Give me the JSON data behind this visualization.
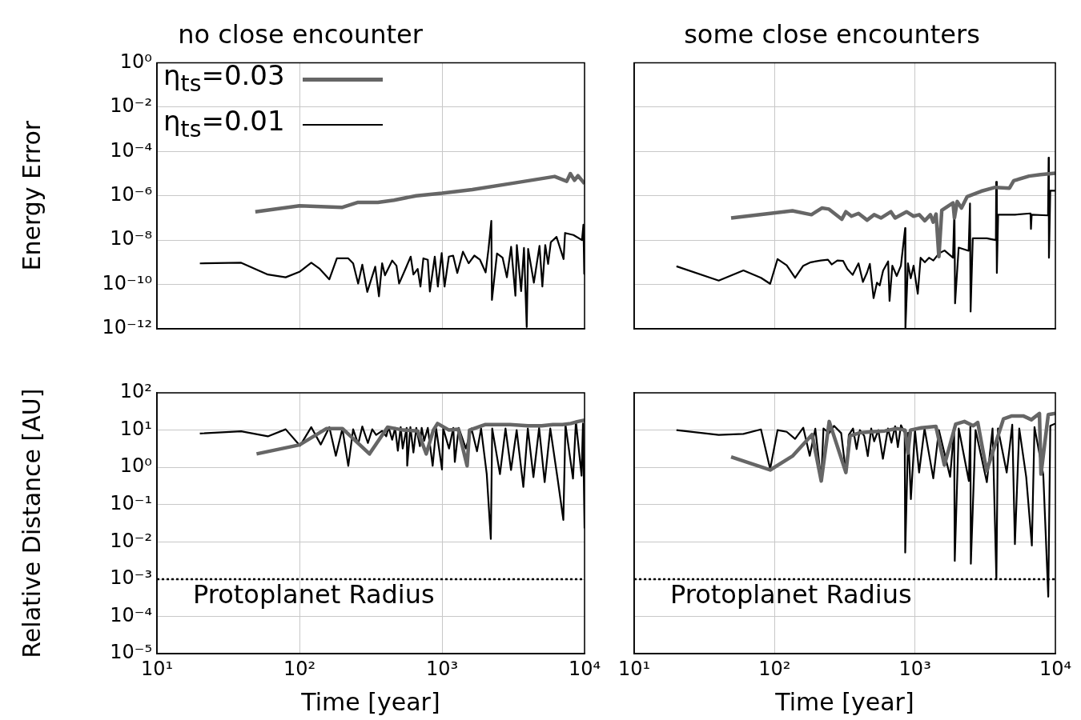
{
  "chart_data": [
    {
      "type": "line",
      "title": "no close encounter",
      "ylabel": "Energy Error",
      "log": "xy",
      "grid": true,
      "legend": "top left",
      "tick_labels": "y",
      "xlim": [
        10,
        10000
      ],
      "xticks": [
        {
          "value": 10,
          "label": null
        },
        {
          "value": 100,
          "label": null
        },
        {
          "value": 1000,
          "label": null
        },
        {
          "value": 10000,
          "label": null
        }
      ],
      "ylim": [
        1e-12,
        1
      ],
      "yticks": [
        {
          "value": 1e-12,
          "label": "10⁻¹²"
        },
        {
          "value": 1e-10,
          "label": "10⁻¹⁰"
        },
        {
          "value": 1e-08,
          "label": "10⁻⁸"
        },
        {
          "value": 1e-06,
          "label": "10⁻⁶"
        },
        {
          "value": 0.0001,
          "label": "10⁻⁴"
        },
        {
          "value": 0.01,
          "label": "10⁻²"
        },
        {
          "value": 1,
          "label": "10⁰"
        }
      ],
      "series": [
        {
          "name": "η$_{ts}$=0.03",
          "color": "#666666",
          "x": [
            49,
            100,
            200,
            255,
            355,
            460,
            660,
            1000,
            1630,
            3240,
            6170,
            7500,
            7950,
            8500,
            9000,
            10000
          ],
          "values": [
            1.9e-07,
            3.5e-07,
            3e-07,
            5e-07,
            5e-07,
            6.3e-07,
            1e-06,
            1.3e-06,
            1.9e-06,
            3.8e-06,
            7.4e-06,
            4.5e-06,
            1e-05,
            5e-06,
            8e-06,
            3.5e-06
          ]
        },
        {
          "name": "η$_{ts}$=0.01",
          "color": "#000000",
          "x": [
            20,
            39,
            60,
            80,
            100,
            121,
            139,
            162,
            183,
            220,
            238,
            258,
            276,
            299,
            340,
            361,
            380,
            398,
            447,
            479,
            500,
            550,
            603,
            630,
            675,
            706,
            740,
            795,
            822,
            890,
            935,
            995,
            1042,
            1117,
            1197,
            1280,
            1403,
            1538,
            1686,
            1847,
            2024,
            2120,
            2218,
            2240,
            2432,
            2662,
            2852,
            3055,
            3273,
            3350,
            3590,
            3760,
            3930,
            4020,
            4410,
            4830,
            5060,
            5300,
            5550,
            5800,
            6360,
            7130,
            7300,
            8360,
            9600,
            9820,
            9950,
            10000
          ],
          "values": [
            8.9e-10,
            9.5e-10,
            2.8e-10,
            2.1e-10,
            3.7e-10,
            9.5e-10,
            5e-10,
            1.7e-10,
            1.5e-09,
            1.5e-09,
            8.9e-10,
            1.1e-10,
            7.8e-10,
            4.6e-11,
            6.3e-10,
            2.9e-11,
            9e-10,
            2.6e-10,
            1.2e-09,
            7e-10,
            1.1e-10,
            4.5e-10,
            1.8e-09,
            2.8e-10,
            5e-10,
            8e-11,
            1.5e-09,
            1.3e-09,
            4.8e-11,
            1.8e-09,
            8e-11,
            2.6e-09,
            8e-11,
            1.8e-09,
            2e-09,
            3.3e-10,
            3e-09,
            9e-10,
            2e-09,
            1.3e-09,
            3.5e-10,
            4e-09,
            7.4e-08,
            2e-11,
            2.5e-09,
            1.6e-09,
            2.1e-10,
            5e-09,
            3.1e-11,
            6e-09,
            5e-11,
            4.5e-09,
            1.2e-12,
            4e-09,
            1.2e-10,
            5.5e-09,
            8e-11,
            6e-09,
            8.5e-10,
            8e-09,
            1.4e-08,
            1.4e-09,
            2.1e-08,
            1.7e-08,
            1e-08,
            5e-08,
            3e-10,
            6e-09
          ]
        }
      ]
    },
    {
      "type": "line",
      "title": "some close encounters",
      "log": "xy",
      "grid": true,
      "tick_labels": false,
      "xlim": [
        10,
        10000
      ],
      "xticks": [
        {
          "value": 10,
          "label": null
        },
        {
          "value": 100,
          "label": null
        },
        {
          "value": 1000,
          "label": null
        },
        {
          "value": 10000,
          "label": null
        }
      ],
      "ylim": [
        1e-12,
        1
      ],
      "yticks": [
        {
          "value": 1e-12,
          "label": null
        },
        {
          "value": 1e-10,
          "label": null
        },
        {
          "value": 1e-08,
          "label": null
        },
        {
          "value": 1e-06,
          "label": null
        },
        {
          "value": 0.0001,
          "label": null
        },
        {
          "value": 0.01,
          "label": null
        },
        {
          "value": 1,
          "label": null
        }
      ],
      "series": [
        {
          "color": "#666666",
          "x": [
            49,
            134,
            183,
            217,
            244,
            301,
            322,
            353,
            396,
            456,
            512,
            574,
            674,
            722,
            870,
            977,
            1072,
            1175,
            1288,
            1349,
            1413,
            1480,
            1552,
            1866,
            1910,
            2000,
            2143,
            2350,
            2962,
            3730,
            4710,
            5050,
            6500,
            7830,
            10000
          ],
          "values": [
            1e-07,
            2.1e-07,
            1.4e-07,
            2.8e-07,
            2.5e-07,
            8.7e-08,
            1.9e-07,
            1.2e-07,
            1.6e-07,
            8e-08,
            1.4e-07,
            1e-07,
            1.9e-07,
            1e-07,
            1.9e-07,
            1.2e-07,
            1.4e-07,
            7.5e-08,
            1.4e-07,
            6.5e-08,
            1.5e-07,
            1.8e-09,
            2.2e-07,
            4.8e-07,
            1e-07,
            5.5e-07,
            2.8e-07,
            9e-07,
            1.6e-06,
            2.4e-06,
            2.2e-06,
            4.8e-06,
            7.7e-06,
            9e-06,
            1.05e-05
          ]
        },
        {
          "color": "#000000",
          "x": [
            20,
            40,
            60,
            80,
            93,
            105,
            122,
            140,
            160,
            181,
            213,
            240,
            255,
            280,
            308,
            330,
            360,
            396,
            426,
            456,
            477,
            507,
            536,
            561,
            593,
            644,
            659,
            690,
            741,
            794,
            851,
            855,
            891,
            933,
            977,
            1047,
            1097,
            1175,
            1259,
            1352,
            1480,
            1624,
            1866,
            1910,
            1930,
            2047,
            2410,
            2465,
            2490,
            2580,
            3250,
            3770,
            3790,
            3830,
            3910,
            5160,
            6650,
            6700,
            6780,
            8870,
            8950,
            9000,
            9200,
            10000
          ],
          "values": [
            6.6e-10,
            1.5e-10,
            4.3e-10,
            2e-10,
            1.07e-10,
            1.4e-09,
            7.3e-10,
            2e-10,
            7e-10,
            1e-09,
            1.2e-09,
            1.3e-09,
            8e-10,
            1.2e-09,
            1.15e-09,
            5e-10,
            2.7e-10,
            9e-10,
            1.3e-10,
            3.5e-10,
            8.5e-10,
            2.4e-11,
            1.2e-10,
            9e-11,
            4.2e-10,
            1.1e-09,
            1.8e-11,
            7e-10,
            2.4e-10,
            7e-10,
            3.5e-08,
            1.1e-12,
            9e-10,
            1.9e-10,
            7e-10,
            3.8e-11,
            1.6e-09,
            1e-09,
            1.6e-09,
            1.2e-09,
            2.5e-09,
            3.4e-09,
            1.6e-09,
            2.6e-07,
            1.4e-11,
            4.6e-09,
            3.3e-09,
            4.5e-07,
            6e-12,
            1.2e-08,
            1.2e-08,
            1e-08,
            4.2e-06,
            3.3e-10,
            1.4e-07,
            1.4e-07,
            1.6e-07,
            3.2e-08,
            1.4e-07,
            1.3e-07,
            5.2e-05,
            1.6e-09,
            1.7e-06,
            1.7e-06
          ]
        }
      ]
    },
    {
      "type": "line",
      "xlabel": "Time [year]",
      "ylabel": "Relative Distance [AU]",
      "log": "xy",
      "grid": true,
      "xlim": [
        10,
        10000
      ],
      "xticks": [
        {
          "value": 10,
          "label": "10¹"
        },
        {
          "value": 100,
          "label": "10²"
        },
        {
          "value": 1000,
          "label": "10³"
        },
        {
          "value": 10000,
          "label": "10⁴"
        }
      ],
      "ylim": [
        1e-05,
        100
      ],
      "yticks": [
        {
          "value": 1e-05,
          "label": "10⁻⁵"
        },
        {
          "value": 0.0001,
          "label": "10⁻⁴"
        },
        {
          "value": 0.001,
          "label": "10⁻³"
        },
        {
          "value": 0.01,
          "label": "10⁻²"
        },
        {
          "value": 0.1,
          "label": "10⁻¹"
        },
        {
          "value": 1,
          "label": "10⁰"
        },
        {
          "value": 10,
          "label": "10¹"
        },
        {
          "value": 100,
          "label": "10²"
        }
      ],
      "ref_lines": [
        {
          "axis": "y",
          "value": 0.001,
          "label": "Protoplanet Radius",
          "line_style": "dotted",
          "color": "#000000"
        }
      ],
      "series": [
        {
          "color": "#666666",
          "x": [
            50,
            100,
            155,
            200,
            310,
            415,
            535,
            676,
            775,
            870,
            930,
            1120,
            1300,
            1500,
            1560,
            2000,
            3000,
            4000,
            5000,
            6000,
            7000,
            8000,
            9000,
            10000
          ],
          "values": [
            2.3,
            4,
            11,
            11,
            2.3,
            12,
            10,
            9.5,
            2.3,
            10,
            15,
            10,
            10.5,
            1.1,
            10,
            14,
            14,
            13,
            13,
            14,
            14,
            15,
            17,
            18.5
          ]
        },
        {
          "color": "#000000",
          "x": [
            20,
            39,
            60,
            80,
            101,
            121,
            141,
            162,
            180,
            200,
            220,
            238,
            258,
            276,
            302,
            324,
            345,
            380,
            406,
            422,
            447,
            469,
            490,
            513,
            530,
            565,
            570,
            600,
            630,
            660,
            700,
            720,
            750,
            795,
            860,
            910,
            1000,
            1020,
            1120,
            1200,
            1230,
            1310,
            1470,
            1610,
            1760,
            1880,
            2060,
            2200,
            2250,
            2550,
            2790,
            3050,
            3340,
            3720,
            4000,
            4380,
            4800,
            5250,
            5750,
            6470,
            7100,
            7350,
            8300,
            8700,
            9530,
            9750,
            10000
          ],
          "values": [
            8.1,
            9.3,
            6.8,
            10.5,
            3.8,
            12,
            4.1,
            12,
            2.05,
            11,
            1.1,
            10.5,
            4.2,
            12.5,
            4.5,
            10.5,
            7.4,
            9.5,
            6.8,
            12,
            5.5,
            11.5,
            2.8,
            12,
            3.2,
            11.5,
            1.1,
            12,
            2.5,
            11.5,
            3.7,
            11.5,
            5.2,
            11.5,
            1.1,
            11,
            0.88,
            11,
            3.2,
            11.5,
            1.4,
            11.5,
            3.2,
            11,
            2.7,
            11,
            0.66,
            0.012,
            11,
            0.66,
            11,
            0.85,
            10,
            0.3,
            11,
            0.55,
            11.5,
            0.4,
            11,
            0.5,
            0.039,
            14,
            0.5,
            17,
            0.6,
            15,
            0.023
          ]
        }
      ]
    },
    {
      "type": "line",
      "xlabel": "Time [year]",
      "log": "xy",
      "grid": true,
      "tick_labels": "x",
      "xlim": [
        10,
        10000
      ],
      "xticks": [
        {
          "value": 10,
          "label": "10¹"
        },
        {
          "value": 100,
          "label": "10²"
        },
        {
          "value": 1000,
          "label": "10³"
        },
        {
          "value": 10000,
          "label": "10⁴"
        }
      ],
      "ylim": [
        1e-05,
        100
      ],
      "yticks": [
        {
          "value": 1e-05,
          "label": null
        },
        {
          "value": 0.0001,
          "label": null
        },
        {
          "value": 0.001,
          "label": null
        },
        {
          "value": 0.01,
          "label": null
        },
        {
          "value": 0.1,
          "label": null
        },
        {
          "value": 1,
          "label": null
        },
        {
          "value": 10,
          "label": null
        },
        {
          "value": 100,
          "label": null
        }
      ],
      "ref_lines": [
        {
          "axis": "y",
          "value": 0.001,
          "label": "Protoplanet Radius",
          "line_style": "dotted",
          "color": "#000000"
        }
      ],
      "series": [
        {
          "color": "#666666",
          "x": [
            49,
            93,
            134,
            185,
            215,
            245,
            322,
            345,
            405,
            490,
            610,
            740,
            850,
            890,
            930,
            1110,
            1410,
            1620,
            1950,
            2250,
            2600,
            2800,
            3240,
            4270,
            4900,
            5900,
            6750,
            7700,
            7900,
            8900,
            10000
          ],
          "values": [
            1.9,
            0.85,
            2,
            7.6,
            0.43,
            17,
            0.73,
            7,
            8.5,
            9,
            9.5,
            11,
            10,
            2.4,
            10,
            11.5,
            12.5,
            1.15,
            14.5,
            17,
            13,
            16,
            0.8,
            20,
            24,
            24,
            19,
            28,
            0.66,
            26,
            28
          ]
        },
        {
          "color": "#000000",
          "x": [
            20,
            40,
            60,
            80,
            93,
            105,
            122,
            140,
            160,
            178,
            195,
            215,
            223,
            245,
            265,
            298,
            322,
            338,
            362,
            384,
            405,
            435,
            461,
            488,
            512,
            548,
            591,
            642,
            680,
            722,
            755,
            795,
            845,
            852,
            895,
            935,
            1000,
            1070,
            1170,
            1350,
            1480,
            1780,
            1900,
            1920,
            2050,
            2420,
            2480,
            2500,
            2700,
            3250,
            3570,
            3800,
            3900,
            4500,
            4930,
            5150,
            5530,
            6200,
            6800,
            7100,
            8200,
            8900,
            9200,
            10000
          ],
          "values": [
            10,
            7.4,
            7.9,
            10.4,
            0.9,
            10,
            9,
            5.8,
            11.6,
            2.05,
            10.9,
            0.43,
            11,
            8.3,
            13,
            8.3,
            0.73,
            7.4,
            11,
            3.1,
            10,
            7,
            2,
            11,
            5,
            10,
            1.7,
            11,
            4.6,
            12.7,
            3.5,
            13.5,
            8.5,
            0.0052,
            8.5,
            0.14,
            10,
            0.73,
            11,
            0.51,
            10,
            0.56,
            11,
            0.0031,
            11,
            0.43,
            12.5,
            0.0026,
            10,
            0.4,
            11,
            0.001,
            11,
            0.73,
            14,
            0.0087,
            11,
            0.55,
            0.008,
            12,
            0.64,
            0.00034,
            13,
            15
          ]
        }
      ]
    }
  ]
}
